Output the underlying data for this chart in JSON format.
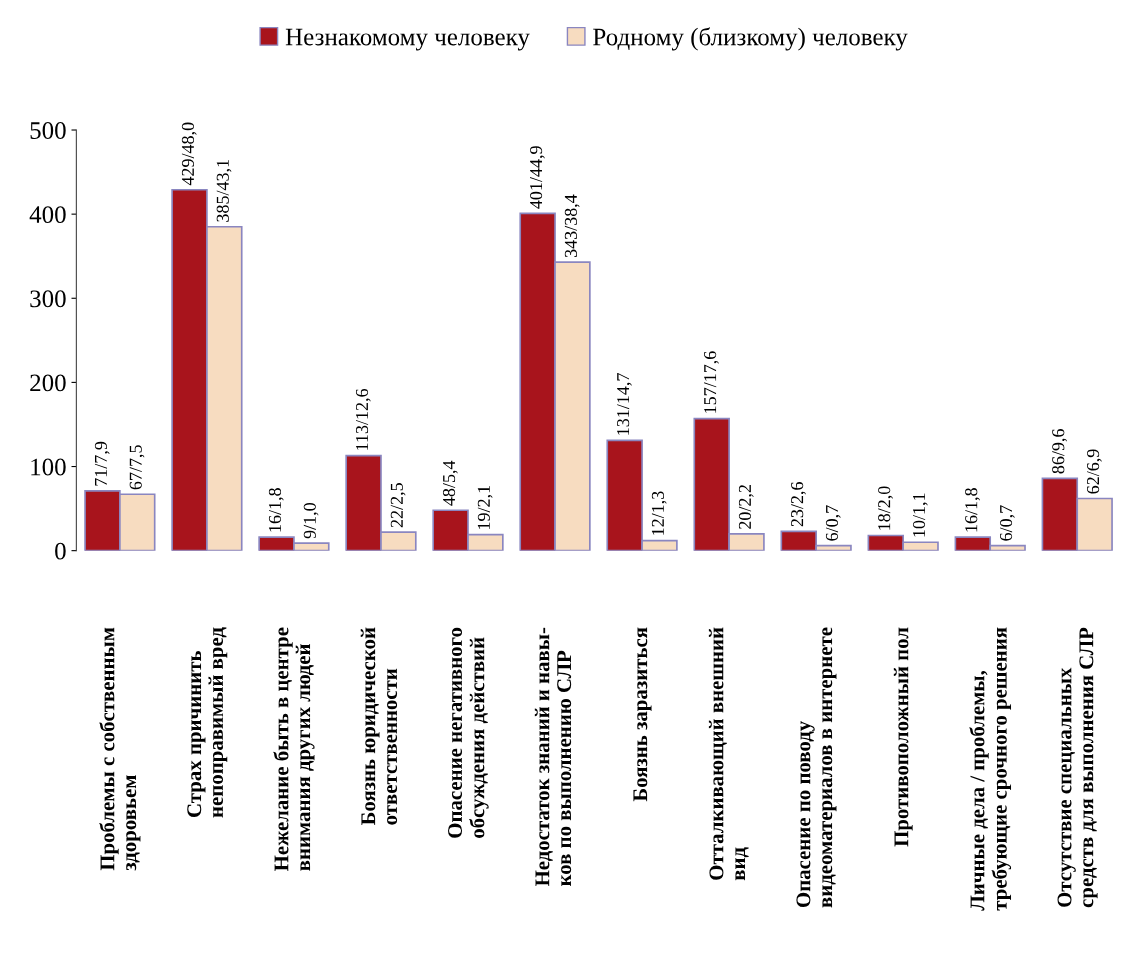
{
  "chart_data": {
    "type": "bar",
    "categories": [
      "Проблемы с собственным\nздоровьем",
      "Страх причинить\nнепоправимый вред",
      "Нежелание быть в центре\nвнимания других людей",
      "Боязнь юридической\nответственности",
      "Опасение негативного\nобсуждения действий",
      "Недостаток знаний и навы-\nков по выполнению СЛР",
      "Боязнь заразиться",
      "Отталкивающий внешний\nвид",
      "Опасение по поводу\nвидеоматериалов в интернете",
      "Противоположный пол",
      "Личные дела / проблемы,\nтребующие срочного решения",
      "Отсутствие специальных\nсредств для выполнения СЛР"
    ],
    "series": [
      {
        "name": "Незнакомому человеку",
        "color": "#a8141c",
        "values": [
          71,
          429,
          16,
          113,
          48,
          401,
          131,
          157,
          23,
          18,
          16,
          86
        ],
        "value_labels": [
          "71/7,9",
          "429/48,0",
          "16/1,8",
          "113/12,6",
          "48/5,4",
          "401/44,9",
          "131/14,7",
          "157/17,6",
          "23/2,6",
          "18/2,0",
          "16/1,8",
          "86/9,6"
        ]
      },
      {
        "name": "Родному (близкому) человеку",
        "color": "#f7dcc0",
        "values": [
          67,
          385,
          9,
          22,
          19,
          343,
          12,
          20,
          6,
          10,
          6,
          62
        ],
        "value_labels": [
          "67/7,5",
          "385/43,1",
          "9/1,0",
          "22/2,5",
          "19/2,1",
          "343/38,4",
          "12/1,3",
          "20/2,2",
          "6/0,7",
          "10/1,1",
          "6/0,7",
          "62/6,9"
        ]
      }
    ],
    "ylim": [
      0,
      500
    ],
    "yticks": [
      0,
      100,
      200,
      300,
      400,
      500
    ],
    "grid": false,
    "legend": "top"
  }
}
